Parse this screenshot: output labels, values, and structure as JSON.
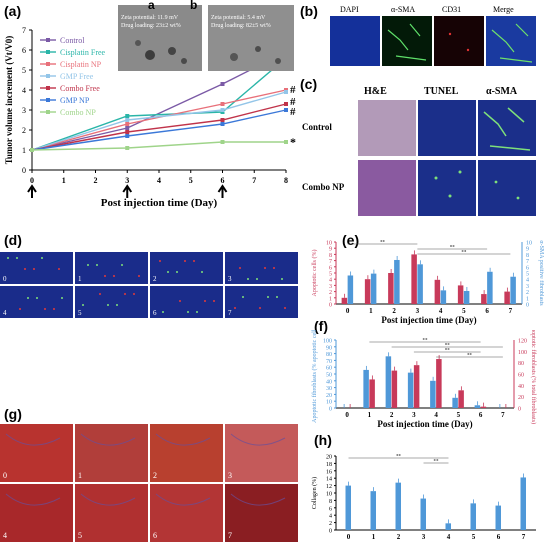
{
  "panel_labels": {
    "a": "(a)",
    "b": "(b)",
    "c": "(c)",
    "d": "(d)",
    "e": "(e)",
    "f": "(f)",
    "g": "(g)",
    "h": "(h)"
  },
  "inset": {
    "a_label": "a",
    "a_line1": "Zeta potential: 11.9 mV",
    "a_line2": "Drug loading: 23±2 wt%",
    "b_label": "b",
    "b_line1": "Zeta potential: 5.4 mV",
    "b_line2": "Drug loading: 82±5 wt%"
  },
  "panel_b": {
    "headers": [
      "DAPI",
      "α-SMA",
      "CD31",
      "Merge"
    ]
  },
  "panel_c": {
    "headers": [
      "H&E",
      "TUNEL",
      "α-SMA"
    ],
    "rows": [
      "Control",
      "Combo NP"
    ]
  },
  "panel_d": {
    "labels": [
      "0",
      "1",
      "2",
      "3",
      "4",
      "5",
      "6",
      "7"
    ]
  },
  "panel_g": {
    "labels": [
      "0",
      "1",
      "2",
      "3",
      "4",
      "5",
      "6",
      "7"
    ]
  },
  "colors": {
    "control": "#7b5aa6",
    "cisplatin_free": "#2ab5a8",
    "cisplatin_np": "#e8707a",
    "gmp_free": "#93c5e8",
    "combo_free": "#c0334a",
    "gmp_np": "#3b78d8",
    "combo_np": "#9fd48a",
    "red_bar": "#c83a5a",
    "blue_bar": "#4f98d8"
  },
  "chart_data": [
    {
      "id": "a",
      "type": "line",
      "xlabel": "Post injection time (Day)",
      "ylabel": "Tumor volume increment (Vt/V0)",
      "x": [
        0,
        3,
        6,
        8
      ],
      "xlim": [
        0,
        8
      ],
      "ylim": [
        0,
        7
      ],
      "xticks": [
        "0",
        "1",
        "2",
        "3",
        "4",
        "5",
        "6",
        "7",
        "8"
      ],
      "yticks": [
        "0",
        "1",
        "2",
        "3",
        "4",
        "5",
        "6",
        "7"
      ],
      "series": [
        {
          "name": "Control",
          "color": "#7b5aa6",
          "values": [
            1,
            2.1,
            4.3,
            5.9
          ]
        },
        {
          "name": "Cisplatin Free",
          "color": "#2ab5a8",
          "values": [
            1,
            2.7,
            2.9,
            5.6
          ]
        },
        {
          "name": "Cisplatin NP",
          "color": "#e8707a",
          "values": [
            1,
            2.3,
            3.3,
            4.0
          ]
        },
        {
          "name": "GMP Free",
          "color": "#93c5e8",
          "values": [
            1,
            2.5,
            3.0,
            3.9
          ]
        },
        {
          "name": "Combo Free",
          "color": "#c0334a",
          "values": [
            1,
            1.9,
            2.5,
            3.3
          ]
        },
        {
          "name": "GMP NP",
          "color": "#3b78d8",
          "values": [
            1,
            1.7,
            2.3,
            3.0
          ]
        },
        {
          "name": "Combo NP",
          "color": "#9fd48a",
          "values": [
            1,
            1.1,
            1.4,
            1.4
          ]
        }
      ],
      "annotations": [
        "#",
        "#",
        "#",
        "*"
      ]
    },
    {
      "id": "e",
      "type": "bar",
      "xlabel": "Post injection time (Day)",
      "ylabel_left": "Apoptotic cells (%)",
      "ylabel_right": "α-SMA positive fibroblasts",
      "categories": [
        "0",
        "1",
        "2",
        "3",
        "4",
        "5",
        "6",
        "7"
      ],
      "ylim": [
        0,
        10
      ],
      "yticks": [
        "0",
        "1",
        "2",
        "3",
        "4",
        "5",
        "6",
        "7",
        "8",
        "9",
        "10"
      ],
      "series": [
        {
          "name": "Apoptotic cells (%)",
          "color": "#c83a5a",
          "values": [
            1.0,
            4.0,
            5.0,
            8.0,
            3.9,
            3.0,
            1.6,
            2.0
          ]
        },
        {
          "name": "α-SMA positive fibroblasts",
          "color": "#4f98d8",
          "values": [
            4.6,
            4.9,
            7.1,
            6.4,
            2.2,
            2.1,
            5.2,
            4.4
          ]
        }
      ],
      "annotations": [
        "**",
        "**",
        "**"
      ]
    },
    {
      "id": "f",
      "type": "bar",
      "xlabel": "Post injection time (Day)",
      "ylabel_left": "Apoptotic fibroblasts (% apoptotic cells)",
      "ylabel_right": "Apoptotic fibroblasts (% total fibroblasts)",
      "categories": [
        "0",
        "1",
        "2",
        "3",
        "4",
        "5",
        "6",
        "7"
      ],
      "ylim": [
        0,
        100
      ],
      "yticks": [
        "0",
        "10",
        "20",
        "30",
        "40",
        "50",
        "60",
        "70",
        "80",
        "90",
        "100"
      ],
      "yticks_right": [
        "0",
        "20",
        "40",
        "60",
        "80",
        "100",
        "120"
      ],
      "series": [
        {
          "name": "Apoptotic fibroblasts (% apoptotic cells)",
          "color": "#4f98d8",
          "values": [
            0,
            56,
            76,
            52,
            40,
            15,
            4,
            0
          ]
        },
        {
          "name": "Apoptotic fibroblasts (% total fibroblasts)",
          "color": "#c83a5a",
          "values": [
            0,
            42,
            55,
            63,
            72,
            26,
            2,
            0
          ]
        }
      ],
      "annotations": [
        "**",
        "**",
        "**",
        "**"
      ]
    },
    {
      "id": "h",
      "type": "bar",
      "ylabel": "Collagen (%)",
      "categories": [
        "0",
        "1",
        "2",
        "3",
        "4",
        "5",
        "6",
        "7"
      ],
      "ylim": [
        0,
        20
      ],
      "yticks": [
        "0",
        "2",
        "4",
        "6",
        "8",
        "10",
        "12",
        "14",
        "16",
        "18",
        "20"
      ],
      "series": [
        {
          "name": "Collagen (%)",
          "color": "#4f98d8",
          "values": [
            12.0,
            10.5,
            12.8,
            8.5,
            1.8,
            7.2,
            6.6,
            14.2
          ]
        }
      ],
      "annotations": [
        "**",
        "**"
      ]
    }
  ]
}
